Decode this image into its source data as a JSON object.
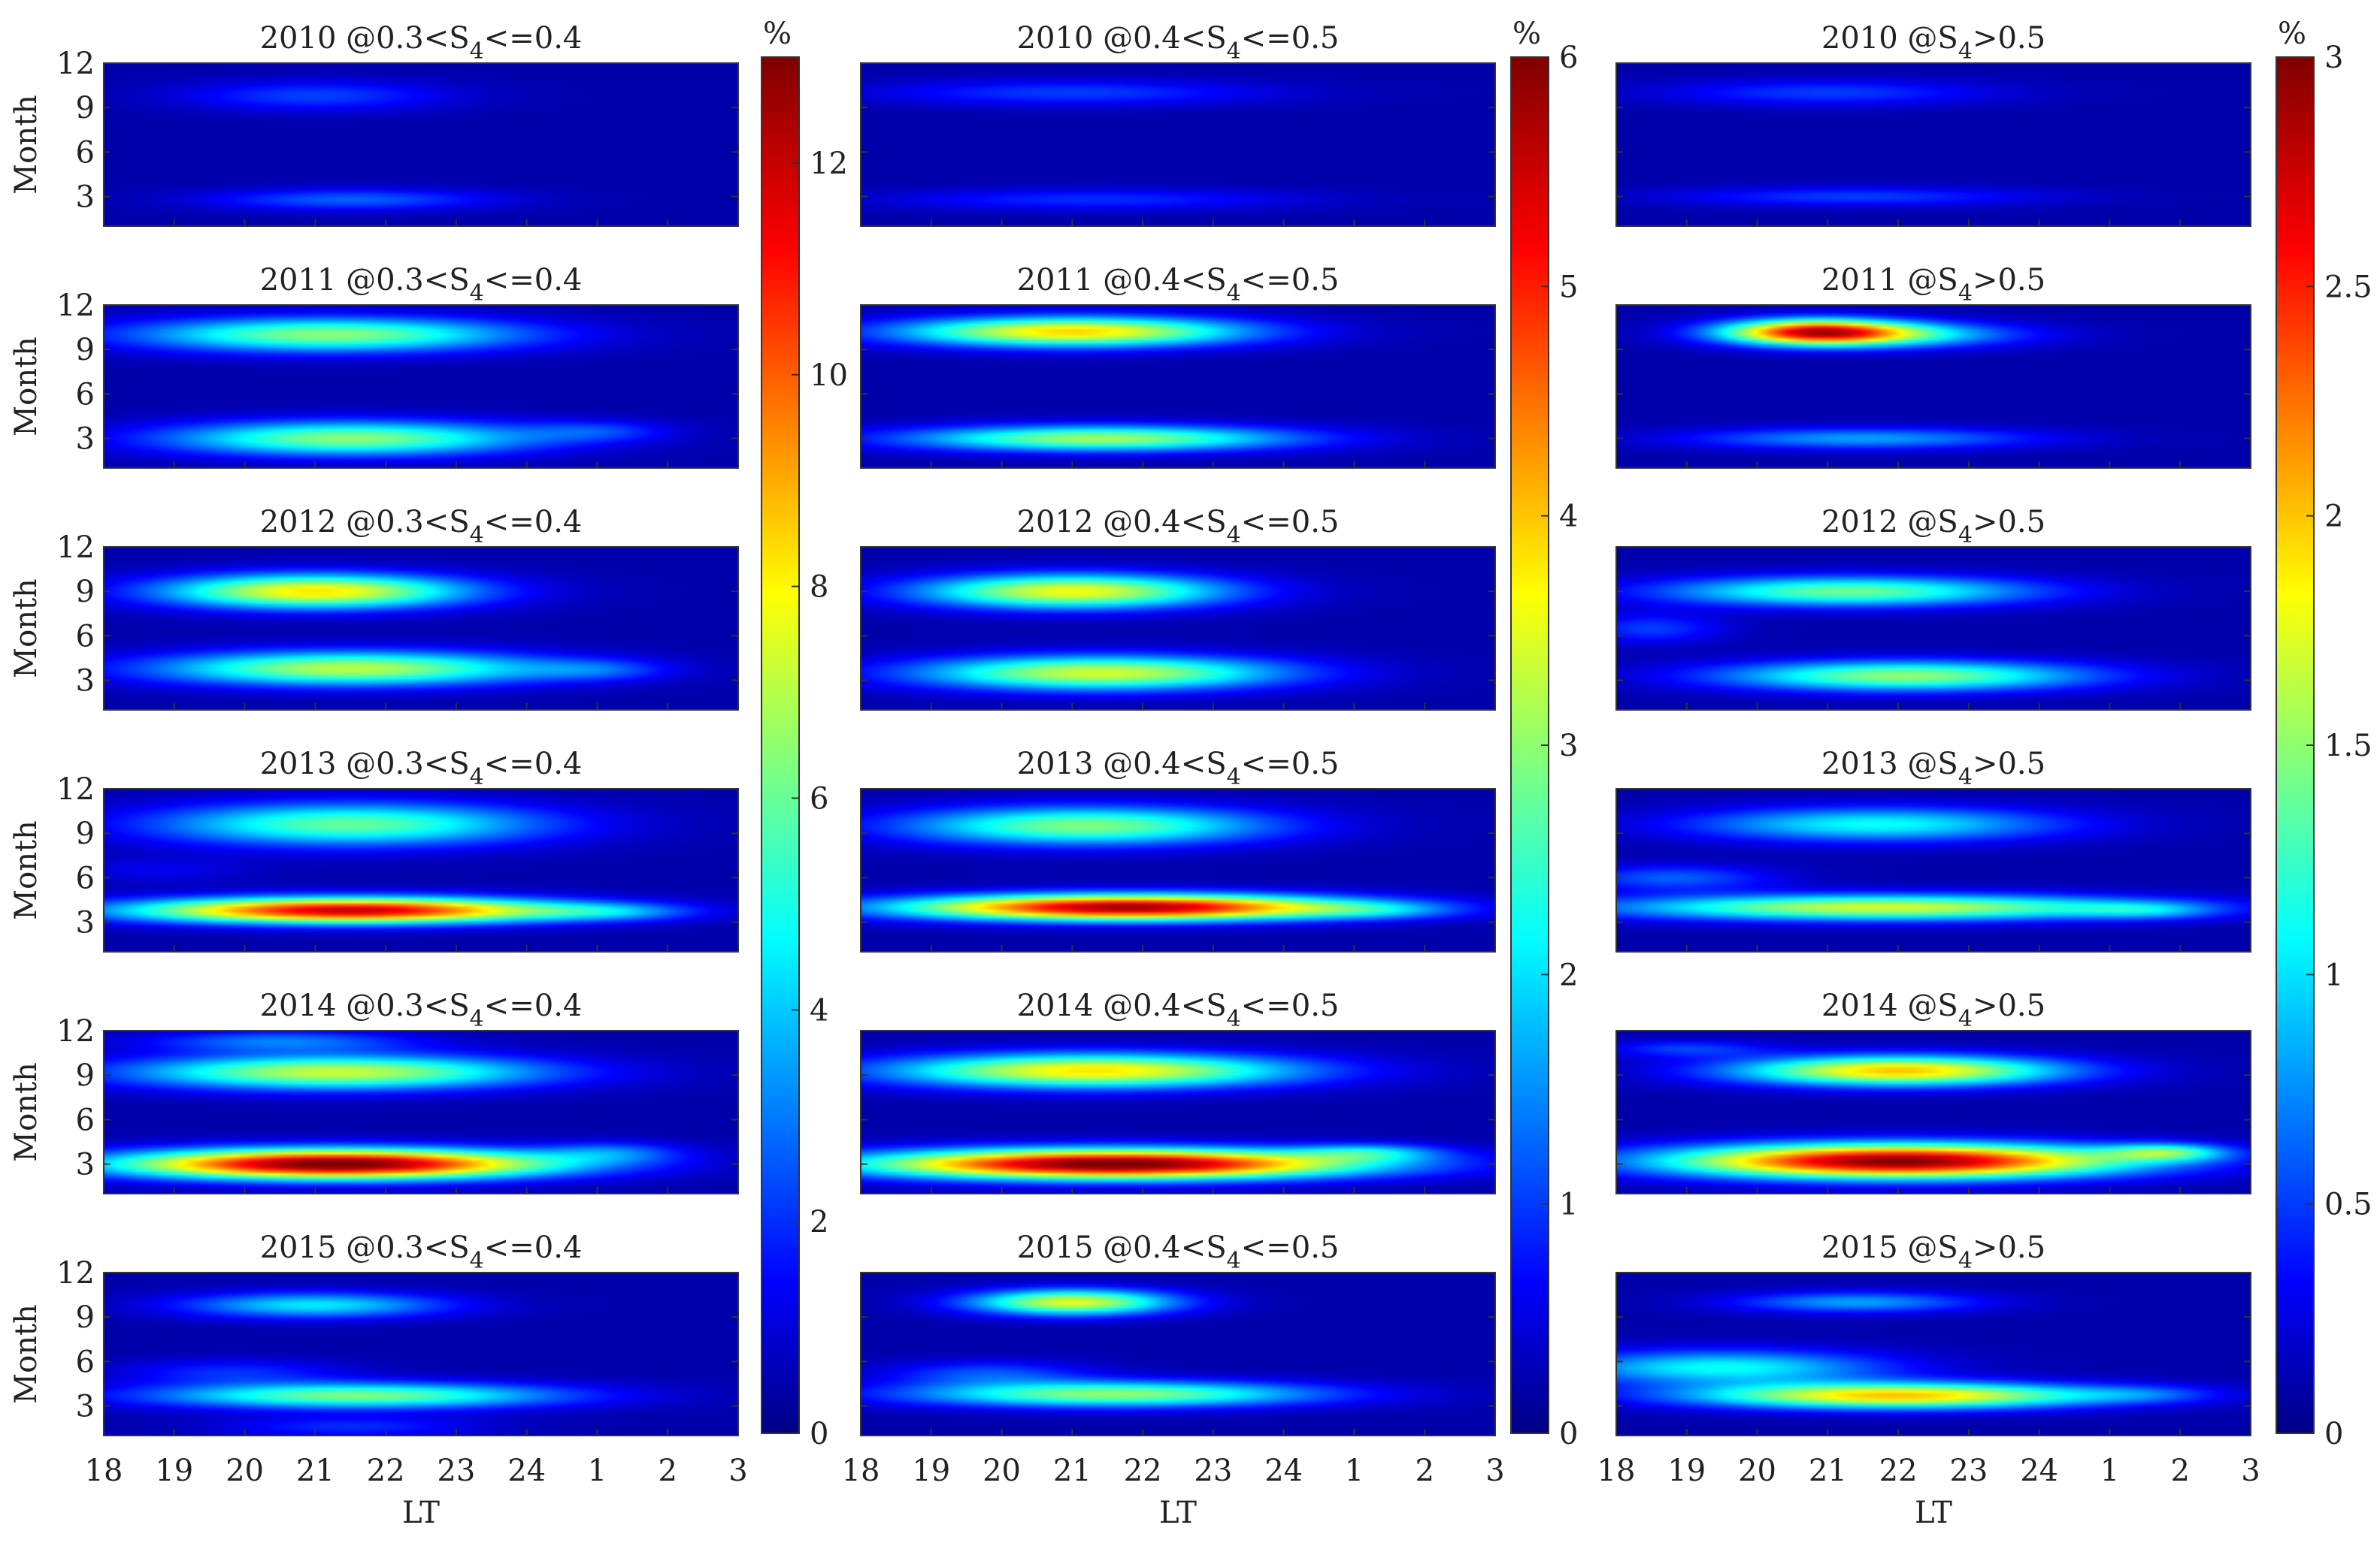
{
  "chart_data": {
    "type": "heatmap",
    "rows": [
      "2010",
      "2011",
      "2012",
      "2013",
      "2014",
      "2015"
    ],
    "columns": [
      {
        "suffix": " @0.3<S",
        "sub": "4",
        "tail": "<=0.4",
        "cb_max": 13,
        "cb_ticks": [
          "0",
          "2",
          "4",
          "6",
          "8",
          "10",
          "12"
        ],
        "cb_vals": [
          0,
          2,
          4,
          6,
          8,
          10,
          12
        ]
      },
      {
        "suffix": " @0.4<S",
        "sub": "4",
        "tail": "<=0.5",
        "cb_max": 6,
        "cb_ticks": [
          "0",
          "1",
          "2",
          "3",
          "4",
          "5",
          "6"
        ],
        "cb_vals": [
          0,
          1,
          2,
          3,
          4,
          5,
          6
        ]
      },
      {
        "suffix": " @S",
        "sub": "4",
        "tail": ">0.5",
        "cb_max": 3,
        "cb_ticks": [
          "0",
          "0.5",
          "1",
          "1.5",
          "2",
          "2.5",
          "3"
        ],
        "cb_vals": [
          0,
          0.5,
          1,
          1.5,
          2,
          2.5,
          3
        ]
      }
    ],
    "x_ticks": [
      "18",
      "19",
      "20",
      "21",
      "22",
      "23",
      "24",
      "1",
      "2",
      "3"
    ],
    "y_ticks": [
      "3",
      "6",
      "9",
      "12"
    ],
    "y_tick_vals": [
      3,
      6,
      9,
      12
    ],
    "xlabel": "LT",
    "ylabel": "Month",
    "colorbar_unit": "%",
    "x_range_hours": [
      18,
      27
    ],
    "y_range_months": [
      1,
      12
    ],
    "blobs": [
      [
        [
          [
            21.0,
            9.8,
            1.3,
            0.7,
            1.8
          ],
          [
            21.5,
            2.8,
            1.4,
            0.5,
            2.2
          ]
        ],
        [
          [
            21.0,
            10.0,
            1.9,
            0.6,
            0.8
          ],
          [
            21.3,
            2.8,
            2.0,
            0.5,
            0.7
          ]
        ],
        [
          [
            21.0,
            10.0,
            1.6,
            0.6,
            0.4
          ],
          [
            21.4,
            3.0,
            1.8,
            0.45,
            0.4
          ]
        ]
      ],
      [
        [
          [
            21.2,
            10.0,
            1.9,
            0.8,
            6.0
          ],
          [
            21.5,
            3.0,
            1.8,
            0.8,
            6.0
          ],
          [
            25.0,
            3.5,
            0.7,
            0.5,
            1.5
          ]
        ],
        [
          [
            21.0,
            10.2,
            1.7,
            0.7,
            3.7
          ],
          [
            21.4,
            3.0,
            1.9,
            0.6,
            2.9
          ]
        ],
        [
          [
            20.8,
            10.2,
            0.9,
            0.6,
            2.1
          ],
          [
            21.8,
            10.0,
            1.3,
            0.6,
            1.0
          ],
          [
            21.5,
            3.0,
            1.7,
            0.5,
            0.7
          ]
        ]
      ],
      [
        [
          [
            21.0,
            9.0,
            1.5,
            0.8,
            7.8
          ],
          [
            21.5,
            3.8,
            1.9,
            0.8,
            6.6
          ],
          [
            25.0,
            3.7,
            0.7,
            0.5,
            1.6
          ]
        ],
        [
          [
            21.0,
            9.0,
            1.5,
            0.8,
            3.4
          ],
          [
            21.4,
            3.5,
            1.8,
            0.8,
            3.2
          ]
        ],
        [
          [
            21.3,
            9.0,
            1.8,
            0.7,
            1.3
          ],
          [
            22.1,
            3.3,
            1.8,
            0.7,
            1.4
          ],
          [
            18.5,
            6.5,
            0.7,
            0.7,
            0.4
          ]
        ]
      ],
      [
        [
          [
            21.5,
            9.6,
            1.9,
            1.0,
            5.5
          ],
          [
            21.5,
            3.8,
            2.1,
            0.6,
            11.5
          ],
          [
            25.2,
            3.7,
            0.8,
            0.4,
            2.0
          ],
          [
            18.8,
            6.5,
            0.9,
            0.6,
            0.8
          ]
        ],
        [
          [
            21.2,
            9.5,
            1.8,
            0.9,
            2.7
          ],
          [
            21.8,
            4.0,
            2.2,
            0.6,
            5.6
          ],
          [
            25.3,
            3.8,
            0.8,
            0.4,
            0.8
          ]
        ],
        [
          [
            21.7,
            9.6,
            1.8,
            0.8,
            1.0
          ],
          [
            21.8,
            4.0,
            2.6,
            0.6,
            1.6
          ],
          [
            25.5,
            3.8,
            0.7,
            0.4,
            0.5
          ],
          [
            18.8,
            6.0,
            1.0,
            0.6,
            0.5
          ]
        ]
      ],
      [
        [
          [
            21.3,
            9.2,
            2.0,
            0.8,
            6.8
          ],
          [
            21.3,
            3.0,
            2.1,
            0.7,
            13.0
          ],
          [
            25.2,
            3.8,
            0.7,
            0.5,
            2.0
          ],
          [
            20.5,
            11.3,
            1.3,
            0.5,
            2.5
          ]
        ],
        [
          [
            21.3,
            9.3,
            2.0,
            0.8,
            3.6
          ],
          [
            21.6,
            3.0,
            2.4,
            0.7,
            6.0
          ],
          [
            25.2,
            3.8,
            0.7,
            0.4,
            1.3
          ]
        ],
        [
          [
            22.0,
            9.3,
            1.6,
            0.7,
            1.9
          ],
          [
            22.0,
            3.2,
            2.2,
            0.8,
            2.9
          ],
          [
            25.8,
            3.8,
            0.6,
            0.4,
            1.0
          ],
          [
            19.0,
            10.8,
            0.8,
            0.4,
            0.4
          ]
        ]
      ],
      [
        [
          [
            21.0,
            9.8,
            1.3,
            0.6,
            4.0
          ],
          [
            21.6,
            3.7,
            2.0,
            0.6,
            5.8
          ],
          [
            19.8,
            5.3,
            1.1,
            0.6,
            1.5
          ],
          [
            21.5,
            1.6,
            1.3,
            0.5,
            1.5
          ]
        ],
        [
          [
            21.0,
            10.0,
            1.0,
            0.6,
            3.3
          ],
          [
            21.6,
            3.8,
            2.0,
            0.6,
            2.8
          ],
          [
            19.8,
            5.2,
            1.0,
            0.6,
            0.9
          ]
        ],
        [
          [
            21.4,
            10.0,
            1.2,
            0.5,
            0.7
          ],
          [
            22.0,
            3.7,
            2.0,
            0.6,
            1.9
          ],
          [
            19.5,
            5.6,
            1.6,
            0.8,
            1.0
          ],
          [
            25.5,
            3.8,
            0.7,
            0.4,
            0.3
          ]
        ]
      ]
    ]
  }
}
